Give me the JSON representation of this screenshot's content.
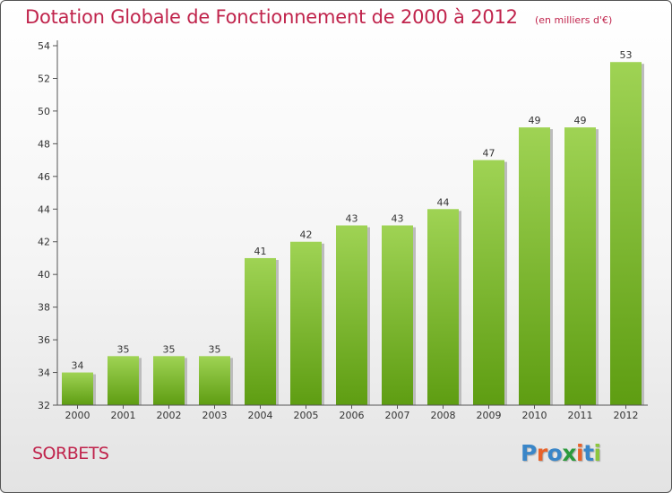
{
  "header": {
    "title": "Dotation Globale de Fonctionnement de 2000 à 2012",
    "subtitle": "(en milliers d'€)"
  },
  "footer": {
    "town": "SORBETS",
    "logo_text": "Proxiti"
  },
  "colors": {
    "title": "#c0244c",
    "bar_top": "#9fd354",
    "bar_bottom": "#5e9d12",
    "logo": [
      "#3a86c8",
      "#e8622a",
      "#3a86c8",
      "#2b9a3c",
      "#e8622a",
      "#3a86c8",
      "#8cc63e"
    ]
  },
  "chart_data": {
    "type": "bar",
    "categories": [
      "2000",
      "2001",
      "2002",
      "2003",
      "2004",
      "2005",
      "2006",
      "2007",
      "2008",
      "2009",
      "2010",
      "2011",
      "2012"
    ],
    "values": [
      34,
      35,
      35,
      35,
      41,
      42,
      43,
      43,
      44,
      47,
      49,
      49,
      53
    ],
    "data_labels": [
      "34",
      "35",
      "35",
      "35",
      "41",
      "42",
      "43",
      "43",
      "44",
      "47",
      "49",
      "49",
      "53"
    ],
    "title": "Dotation Globale de Fonctionnement de 2000 à 2012",
    "subtitle": "(en milliers d'€)",
    "ylim": [
      32,
      54
    ],
    "yticks": [
      32,
      34,
      36,
      38,
      40,
      42,
      44,
      46,
      48,
      50,
      52,
      54
    ],
    "grid": false,
    "legend": "none"
  }
}
